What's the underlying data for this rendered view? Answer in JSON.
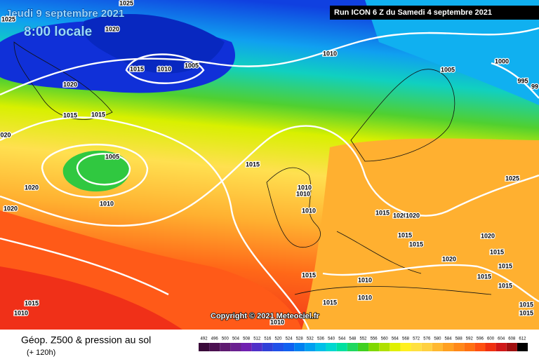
{
  "header": {
    "date": "Jeudi 9 septembre 2021",
    "time": "8:00 locale",
    "run": "Run ICON 6 Z du Samedi 4 septembre 2021"
  },
  "copyright": "Copyright © 2021 Meteociel.fr",
  "footer": {
    "title": "Géop. Z500 & pression au sol",
    "lead": "(+ 120h)"
  },
  "legend": {
    "levels": [
      492,
      496,
      500,
      504,
      508,
      512,
      516,
      520,
      524,
      528,
      532,
      536,
      540,
      544,
      548,
      552,
      556,
      560,
      564,
      568,
      572,
      576,
      580,
      584,
      588,
      592,
      596,
      600,
      604,
      608,
      612
    ],
    "colors": [
      "#3a0a3a",
      "#4b1050",
      "#5e1a70",
      "#6a2090",
      "#7020b0",
      "#5030c8",
      "#3040d8",
      "#2050e8",
      "#1060f0",
      "#0080f0",
      "#00a0f0",
      "#00c0e8",
      "#00d8d0",
      "#00e0a0",
      "#20d860",
      "#40d020",
      "#80d800",
      "#b0e000",
      "#e0f000",
      "#fff020",
      "#ffe040",
      "#ffd040",
      "#ffb830",
      "#ffa020",
      "#ff8818",
      "#ff7010",
      "#ff5010",
      "#f03010",
      "#d01818",
      "#a01010",
      "#000000"
    ]
  },
  "isobar_labels": [
    "1025",
    "1020",
    "1025",
    "1015",
    "1010",
    "1005",
    "1010",
    "1020",
    "1005",
    "1000",
    "995",
    "99",
    "1015",
    "1015",
    "020",
    "1005",
    "1015",
    "1020",
    "1010",
    "1020",
    "1010",
    "1010",
    "1010",
    "1015",
    "1020",
    "1020",
    "1025",
    "1015",
    "1020",
    "1015",
    "1015",
    "1020",
    "1015",
    "1015",
    "1015",
    "1010",
    "1015",
    "1010",
    "1015",
    "1015",
    "1015",
    "1010",
    "1015",
    "1010"
  ]
}
